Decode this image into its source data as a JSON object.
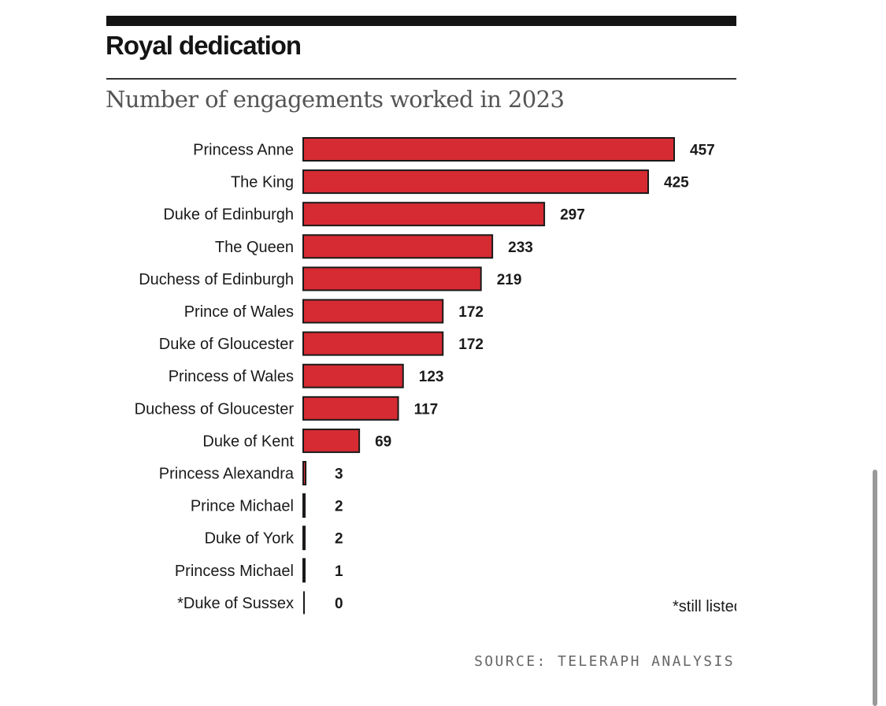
{
  "chart_data": {
    "type": "bar",
    "orientation": "horizontal",
    "title": "Royal dedication",
    "subtitle": "Number of engagements worked in 2023",
    "categories": [
      "Princess Anne",
      "The King",
      "Duke of Edinburgh",
      "The Queen",
      "Duchess of Edinburgh",
      "Prince of Wales",
      "Duke of Gloucester",
      "Princess of Wales",
      "Duchess of Gloucester",
      "Duke of Kent",
      "Princess Alexandra",
      "Prince Michael",
      "Duke of York",
      "Princess Michael",
      "*Duke of Sussex"
    ],
    "values": [
      457,
      425,
      297,
      233,
      219,
      172,
      172,
      123,
      117,
      69,
      3,
      2,
      2,
      1,
      0
    ],
    "xlim": [
      0,
      460
    ],
    "grid": false,
    "bar_color": "#d62b32",
    "bar_outline_color": "#1a1a1a",
    "footnote": "*still listed as a working royal",
    "source": "SOURCE: TELERAPH ANALYSIS"
  }
}
